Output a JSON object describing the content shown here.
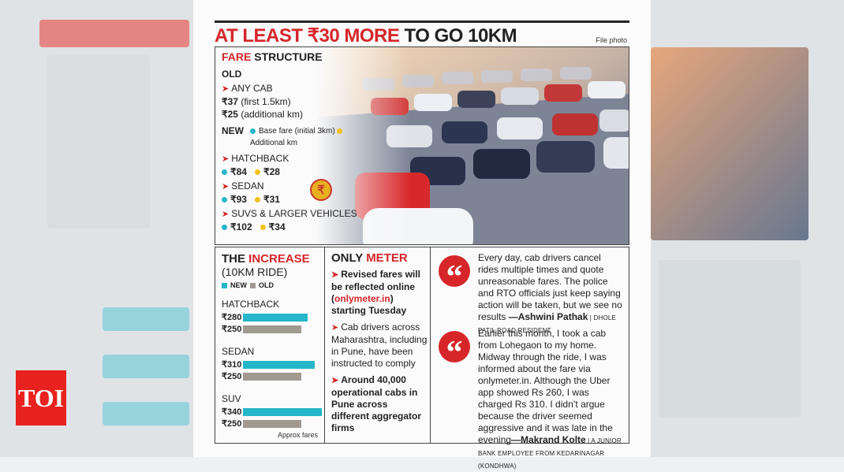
{
  "brand": {
    "logo": "TOI"
  },
  "headline": {
    "prefix": "AT LEAST ₹30 MORE",
    "suffix": " TO GO 10KM",
    "credit": "File photo"
  },
  "fare": {
    "title_red": "FARE",
    "title_rest": " STRUCTURE",
    "old_label": "OLD",
    "any_cab": "ANY CAB",
    "old_first": "₹37",
    "old_first_note": " (first 1.5km)",
    "old_add": "₹25",
    "old_add_note": " (additional km)",
    "new_label": "NEW",
    "legend_base": "Base fare (initial 3km)",
    "legend_add": "Additional km",
    "vehicles": [
      {
        "name": "HATCHBACK",
        "base": "₹84",
        "add": "₹28"
      },
      {
        "name": "SEDAN",
        "base": "₹93",
        "add": "₹31"
      },
      {
        "name": "SUVS & LARGER VEHICLES",
        "base": "₹102",
        "add": "₹34"
      }
    ]
  },
  "increase": {
    "title_plain": "THE ",
    "title_red": "INCREASE",
    "subtitle": "(10KM RIDE)",
    "legend_new": "NEW",
    "legend_old": "OLD",
    "note": "Approx fares",
    "chart_data": {
      "type": "bar",
      "categories": [
        "HATCHBACK",
        "SEDAN",
        "SUV"
      ],
      "series": [
        {
          "name": "NEW",
          "values": [
            280,
            310,
            340
          ],
          "labels": [
            "₹280",
            "₹310",
            "₹340"
          ],
          "color": "#25b6c8"
        },
        {
          "name": "OLD",
          "values": [
            250,
            250,
            250
          ],
          "labels": [
            "₹250",
            "₹250",
            "₹250"
          ],
          "color": "#a09a90"
        }
      ],
      "ylim": [
        0,
        340
      ]
    }
  },
  "meter": {
    "title_plain": "ONLY ",
    "title_red": "METER",
    "p1_a": "Revised fares will be reflected online (",
    "p1_link": "onlymeter.in",
    "p1_b": ") starting Tuesday",
    "p2": "Cab drivers across Maharashtra, including in Pune, have been instructed to comply",
    "p3": "Around 40,000 operational cabs in Pune across different aggregator firms"
  },
  "quotes": [
    {
      "text": "Every day, cab drivers cancel rides multiple times and quote unreasonable fares. The police and RTO officials just keep saying action will be taken, but we see no results ",
      "author": "—Ashwini Pathak",
      "role": " | DHOLE PATIL ROAD RESIDENT"
    },
    {
      "text": "Earlier this month, I took a cab from Lohegaon to my home. Midway through the ride, I was informed about the fare via onlymeter.in. Although the Uber app showed Rs 260, I was charged Rs 310. I didn’t argue because the driver seemed aggressive and it was late in the evening",
      "author": "—Makrand Kolte",
      "role": " | A JUNIOR BANK EMPLOYEE FROM KEDARINAGAR (KONDHWA)"
    }
  ]
}
